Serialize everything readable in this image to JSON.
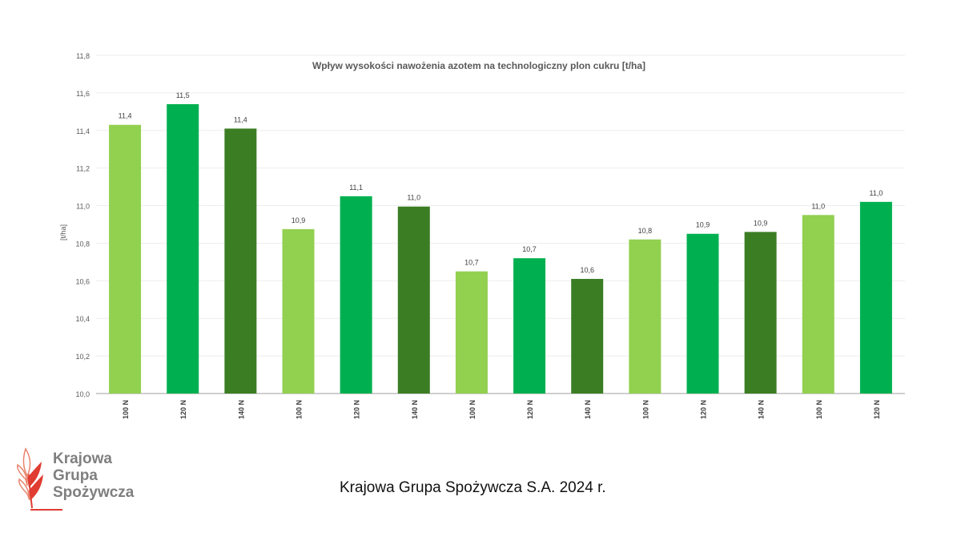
{
  "chart_data": {
    "type": "bar",
    "title": "Wpływ  wysokości nawożenia azotem na technologiczny plon cukru  [t/ha]",
    "ylabel": "[t/ha]",
    "xlabel": "",
    "ylim": [
      10.0,
      11.8
    ],
    "yticks": [
      "10,0",
      "10,2",
      "10,4",
      "10,6",
      "10,8",
      "11,0",
      "11,2",
      "11,4",
      "11,6",
      "11,8"
    ],
    "grid": true,
    "categories": [
      "100 N",
      "120 N",
      "140 N",
      "100 N",
      "120 N",
      "140 N",
      "100 N",
      "120 N",
      "140 N",
      "100 N",
      "120 N",
      "140 N",
      "100 N",
      "120 N"
    ],
    "values": [
      11.43,
      11.54,
      11.41,
      10.875,
      11.05,
      10.995,
      10.65,
      10.72,
      10.61,
      10.82,
      10.85,
      10.86,
      10.95,
      11.02
    ],
    "data_labels": [
      "11,4",
      "11,5",
      "11,4",
      "10,9",
      "11,1",
      "11,0",
      "10,7",
      "10,7",
      "10,6",
      "10,8",
      "10,9",
      "10,9",
      "11,0",
      "11,0"
    ],
    "colors": {
      "100 N": "#92d050",
      "120 N": "#00b050",
      "140 N": "#3b7d23"
    }
  },
  "footer": "Krajowa Grupa Spożywcza S.A. 2024 r.",
  "logo": {
    "line1": "Krajowa",
    "line2": "Grupa",
    "line3": "Spożywcza"
  }
}
